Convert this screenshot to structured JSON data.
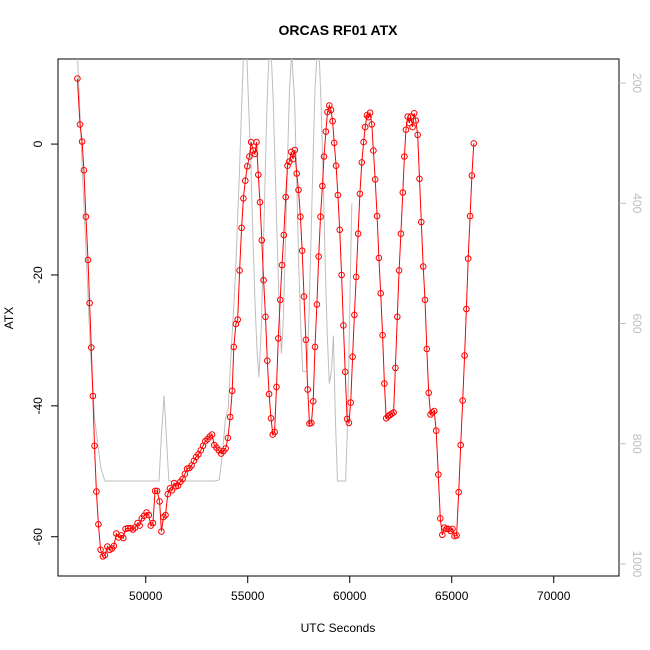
{
  "chart_data": {
    "type": "line",
    "title": "ORCAS RF01 ATX",
    "xlabel": "UTC Seconds",
    "ylabel": "ATX",
    "xlim": [
      45700,
      73200
    ],
    "ylim": [
      -66,
      13
    ],
    "y2lim": [
      1020,
      160
    ],
    "x_ticks": [
      50000,
      55000,
      60000,
      65000,
      70000
    ],
    "x_tick_labels": [
      "50000",
      "55000",
      "60000",
      "65000",
      "70000"
    ],
    "y_ticks": [
      0,
      -20,
      -40,
      -60
    ],
    "y_tick_labels": [
      "0",
      "-20",
      "-40",
      "-60"
    ],
    "y2_ticks": [
      200,
      400,
      600,
      800,
      1000
    ],
    "y2_tick_labels": [
      "200",
      "400",
      "600",
      "800",
      "1000"
    ],
    "grid": false,
    "series": [
      {
        "color": "#ff0000",
        "marker": "open-circle",
        "values": [
          [
            46650,
            10.0
          ],
          [
            46780,
            3.0
          ],
          [
            46880,
            0.4
          ],
          [
            46970,
            -4.0
          ],
          [
            47070,
            -11.1
          ],
          [
            47170,
            -17.7
          ],
          [
            47250,
            -24.3
          ],
          [
            47330,
            -31.1
          ],
          [
            47410,
            -38.5
          ],
          [
            47490,
            -46.1
          ],
          [
            47580,
            -53.1
          ],
          [
            47680,
            -58.1
          ],
          [
            47790,
            -62.0
          ],
          [
            47900,
            -63.0
          ],
          [
            48000,
            -62.8
          ],
          [
            48120,
            -61.5
          ],
          [
            48230,
            -62.0
          ],
          [
            48340,
            -61.8
          ],
          [
            48440,
            -61.4
          ],
          [
            48560,
            -59.5
          ],
          [
            48670,
            -60.1
          ],
          [
            48800,
            -59.8
          ],
          [
            48900,
            -60.2
          ],
          [
            49010,
            -58.8
          ],
          [
            49130,
            -58.7
          ],
          [
            49250,
            -58.7
          ],
          [
            49370,
            -58.9
          ],
          [
            49480,
            -58.6
          ],
          [
            49600,
            -57.9
          ],
          [
            49700,
            -58.3
          ],
          [
            49810,
            -57.2
          ],
          [
            49920,
            -56.8
          ],
          [
            50040,
            -56.3
          ],
          [
            50150,
            -56.7
          ],
          [
            50250,
            -58.3
          ],
          [
            50350,
            -57.9
          ],
          [
            50460,
            -53.0
          ],
          [
            50560,
            -53.0
          ],
          [
            50680,
            -54.6
          ],
          [
            50770,
            -59.2
          ],
          [
            50870,
            -57.0
          ],
          [
            50970,
            -56.7
          ],
          [
            51080,
            -53.5
          ],
          [
            51190,
            -52.6
          ],
          [
            51290,
            -52.9
          ],
          [
            51390,
            -51.8
          ],
          [
            51480,
            -52.3
          ],
          [
            51580,
            -52.2
          ],
          [
            51700,
            -51.6
          ],
          [
            51810,
            -51.2
          ],
          [
            51920,
            -50.4
          ],
          [
            52030,
            -49.6
          ],
          [
            52140,
            -49.5
          ],
          [
            52250,
            -49.1
          ],
          [
            52360,
            -48.4
          ],
          [
            52470,
            -47.8
          ],
          [
            52580,
            -47.4
          ],
          [
            52700,
            -46.8
          ],
          [
            52810,
            -46.1
          ],
          [
            52920,
            -45.4
          ],
          [
            53030,
            -45.1
          ],
          [
            53140,
            -44.7
          ],
          [
            53250,
            -44.4
          ],
          [
            53360,
            -46.0
          ],
          [
            53470,
            -46.4
          ],
          [
            53580,
            -46.8
          ],
          [
            53700,
            -47.3
          ],
          [
            53810,
            -46.9
          ],
          [
            53920,
            -46.5
          ],
          [
            54030,
            -44.9
          ],
          [
            54140,
            -41.7
          ],
          [
            54240,
            -37.7
          ],
          [
            54320,
            -31.0
          ],
          [
            54420,
            -27.5
          ],
          [
            54510,
            -26.8
          ],
          [
            54600,
            -19.3
          ],
          [
            54700,
            -12.8
          ],
          [
            54790,
            -8.3
          ],
          [
            54880,
            -5.6
          ],
          [
            54980,
            -3.4
          ],
          [
            55080,
            -1.9
          ],
          [
            55170,
            0.3
          ],
          [
            55270,
            -1.0
          ],
          [
            55350,
            -1.5
          ],
          [
            55430,
            0.3
          ],
          [
            55520,
            -4.7
          ],
          [
            55600,
            -8.9
          ],
          [
            55690,
            -14.7
          ],
          [
            55780,
            -20.8
          ],
          [
            55870,
            -26.4
          ],
          [
            55960,
            -33.1
          ],
          [
            56050,
            -38.2
          ],
          [
            56140,
            -41.9
          ],
          [
            56230,
            -44.4
          ],
          [
            56320,
            -44.0
          ],
          [
            56410,
            -37.1
          ],
          [
            56500,
            -29.7
          ],
          [
            56590,
            -23.8
          ],
          [
            56680,
            -18.5
          ],
          [
            56770,
            -13.9
          ],
          [
            56860,
            -8.1
          ],
          [
            56950,
            -3.3
          ],
          [
            57040,
            -2.7
          ],
          [
            57130,
            -1.2
          ],
          [
            57220,
            -2.3
          ],
          [
            57310,
            -0.9
          ],
          [
            57400,
            -4.5
          ],
          [
            57490,
            -7.0
          ],
          [
            57580,
            -11.1
          ],
          [
            57670,
            -16.3
          ],
          [
            57760,
            -23.3
          ],
          [
            57850,
            -29.9
          ],
          [
            57940,
            -37.5
          ],
          [
            58030,
            -42.7
          ],
          [
            58120,
            -42.6
          ],
          [
            58210,
            -39.3
          ],
          [
            58300,
            -31.0
          ],
          [
            58390,
            -24.5
          ],
          [
            58480,
            -17.2
          ],
          [
            58570,
            -11.1
          ],
          [
            58660,
            -6.4
          ],
          [
            58740,
            -1.9
          ],
          [
            58830,
            1.9
          ],
          [
            58910,
            4.9
          ],
          [
            59000,
            5.9
          ],
          [
            59080,
            5.2
          ],
          [
            59160,
            3.5
          ],
          [
            59240,
            0.2
          ],
          [
            59330,
            -3.3
          ],
          [
            59420,
            -7.8
          ],
          [
            59510,
            -13.1
          ],
          [
            59600,
            -20.0
          ],
          [
            59690,
            -27.7
          ],
          [
            59780,
            -34.8
          ],
          [
            59870,
            -42.0
          ],
          [
            59960,
            -42.6
          ],
          [
            60050,
            -39.5
          ],
          [
            60140,
            -32.5
          ],
          [
            60230,
            -26.1
          ],
          [
            60320,
            -20.3
          ],
          [
            60410,
            -13.7
          ],
          [
            60500,
            -7.6
          ],
          [
            60590,
            -2.8
          ],
          [
            60680,
            0.3
          ],
          [
            60760,
            2.6
          ],
          [
            60840,
            4.4
          ],
          [
            60920,
            4.1
          ],
          [
            61000,
            4.8
          ],
          [
            61080,
            3.0
          ],
          [
            61160,
            -1.0
          ],
          [
            61250,
            -5.4
          ],
          [
            61340,
            -11.0
          ],
          [
            61430,
            -17.4
          ],
          [
            61520,
            -22.8
          ],
          [
            61610,
            -29.2
          ],
          [
            61700,
            -36.6
          ],
          [
            61790,
            -41.9
          ],
          [
            61880,
            -41.6
          ],
          [
            61970,
            -41.4
          ],
          [
            62060,
            -41.2
          ],
          [
            62150,
            -41.0
          ],
          [
            62240,
            -34.2
          ],
          [
            62330,
            -26.4
          ],
          [
            62420,
            -19.3
          ],
          [
            62510,
            -13.7
          ],
          [
            62600,
            -7.4
          ],
          [
            62680,
            -1.9
          ],
          [
            62760,
            2.2
          ],
          [
            62840,
            4.2
          ],
          [
            62920,
            3.2
          ],
          [
            63000,
            4.2
          ],
          [
            63080,
            2.6
          ],
          [
            63160,
            4.7
          ],
          [
            63240,
            3.6
          ],
          [
            63330,
            1.4
          ],
          [
            63420,
            -5.3
          ],
          [
            63510,
            -11.9
          ],
          [
            63600,
            -18.7
          ],
          [
            63690,
            -23.8
          ],
          [
            63780,
            -31.3
          ],
          [
            63870,
            -38.0
          ],
          [
            63960,
            -41.3
          ],
          [
            64050,
            -41.0
          ],
          [
            64140,
            -40.8
          ],
          [
            64240,
            -43.8
          ],
          [
            64340,
            -50.5
          ],
          [
            64440,
            -57.2
          ],
          [
            64540,
            -59.7
          ],
          [
            64640,
            -58.6
          ],
          [
            64740,
            -58.8
          ],
          [
            64840,
            -58.8
          ],
          [
            64940,
            -59.1
          ],
          [
            65040,
            -58.8
          ],
          [
            65140,
            -59.9
          ],
          [
            65240,
            -59.8
          ],
          [
            65340,
            -53.2
          ],
          [
            65440,
            -46.0
          ],
          [
            65540,
            -39.2
          ],
          [
            65630,
            -32.3
          ],
          [
            65720,
            -25.2
          ],
          [
            65810,
            -17.5
          ],
          [
            65900,
            -11.0
          ],
          [
            65990,
            -4.8
          ],
          [
            66080,
            0.1
          ]
        ]
      },
      {
        "color": "#bebebe",
        "marker": "none",
        "axis": "right",
        "values": [
          [
            46650,
            150
          ],
          [
            46900,
            350
          ],
          [
            47100,
            500
          ],
          [
            47300,
            650
          ],
          [
            47500,
            760
          ],
          [
            47800,
            840
          ],
          [
            48000,
            862
          ],
          [
            48600,
            862
          ],
          [
            50200,
            862
          ],
          [
            50650,
            862
          ],
          [
            50780,
            780
          ],
          [
            50900,
            720
          ],
          [
            51000,
            780
          ],
          [
            51130,
            862
          ],
          [
            51500,
            862
          ],
          [
            52500,
            862
          ],
          [
            53000,
            862
          ],
          [
            53400,
            862
          ],
          [
            53600,
            860
          ],
          [
            53750,
            820
          ],
          [
            53900,
            760
          ],
          [
            54050,
            740
          ],
          [
            54150,
            670
          ],
          [
            54300,
            580
          ],
          [
            54400,
            520
          ],
          [
            54500,
            430
          ],
          [
            54600,
            340
          ],
          [
            54700,
            240
          ],
          [
            54800,
            150
          ],
          [
            54950,
            150
          ],
          [
            55050,
            240
          ],
          [
            55150,
            330
          ],
          [
            55250,
            450
          ],
          [
            55350,
            560
          ],
          [
            55450,
            640
          ],
          [
            55550,
            690
          ],
          [
            55650,
            620
          ],
          [
            55750,
            500
          ],
          [
            55850,
            360
          ],
          [
            55950,
            230
          ],
          [
            56050,
            150
          ],
          [
            56150,
            150
          ],
          [
            56250,
            230
          ],
          [
            56350,
            350
          ],
          [
            56450,
            470
          ],
          [
            56550,
            580
          ],
          [
            56650,
            650
          ],
          [
            56750,
            590
          ],
          [
            56850,
            460
          ],
          [
            56950,
            330
          ],
          [
            57050,
            210
          ],
          [
            57150,
            150
          ],
          [
            57300,
            230
          ],
          [
            57400,
            360
          ],
          [
            57500,
            500
          ],
          [
            57600,
            610
          ],
          [
            57700,
            680
          ],
          [
            57800,
            680
          ],
          [
            57900,
            680
          ],
          [
            58000,
            590
          ],
          [
            58100,
            460
          ],
          [
            58200,
            330
          ],
          [
            58300,
            210
          ],
          [
            58400,
            150
          ],
          [
            58500,
            150
          ],
          [
            58600,
            240
          ],
          [
            58700,
            360
          ],
          [
            58800,
            500
          ],
          [
            58900,
            620
          ],
          [
            59000,
            700
          ],
          [
            59100,
            680
          ],
          [
            59200,
            620
          ],
          [
            59300,
            760
          ],
          [
            59400,
            862
          ],
          [
            59600,
            862
          ],
          [
            59800,
            862
          ],
          [
            59900,
            760
          ],
          [
            60000,
            580
          ],
          [
            60100,
            400
          ]
        ]
      }
    ]
  }
}
